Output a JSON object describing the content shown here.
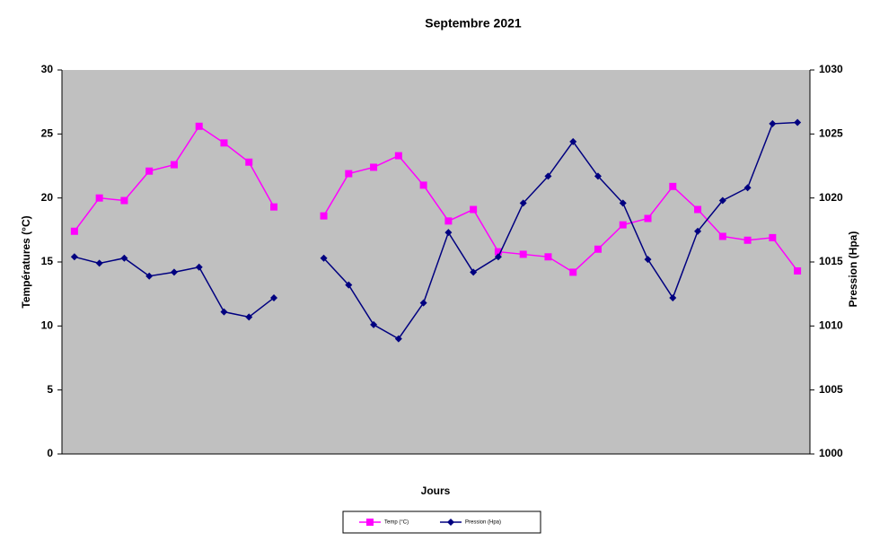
{
  "chart_data": {
    "type": "line",
    "title": "Septembre 2021",
    "xlabel": "Jours",
    "ylabel": "Températures (°C)",
    "y2label": "Pression (Hpa)",
    "categories": [
      null,
      null,
      null,
      null,
      null,
      null,
      null,
      null,
      null,
      null,
      null,
      null,
      null,
      null,
      null,
      null,
      null,
      null,
      null,
      null,
      null,
      null,
      null,
      null,
      null,
      null,
      null,
      null,
      null,
      null
    ],
    "series": [
      {
        "name": "Temp (°C)",
        "color": "#ff00ff",
        "marker": "square",
        "values": [
          17.4,
          20.0,
          19.8,
          22.1,
          22.6,
          25.6,
          24.3,
          22.8,
          19.3,
          null,
          18.6,
          21.9,
          22.4,
          23.3,
          21.0,
          18.2,
          19.1,
          15.8,
          15.6,
          15.4,
          14.2,
          16.0,
          17.9,
          18.4,
          20.9,
          19.1,
          17.0,
          16.7,
          16.9,
          14.3
        ]
      },
      {
        "name": "Pression (Hpa)",
        "color": "#000080",
        "marker": "diamond",
        "axis": "y2",
        "values": [
          1015.4,
          1014.9,
          1015.3,
          1013.9,
          1014.2,
          1014.6,
          1011.1,
          1010.7,
          1012.2,
          null,
          1015.3,
          1013.2,
          1010.1,
          1009.0,
          1011.8,
          1017.3,
          1014.2,
          1015.4,
          1019.6,
          1021.7,
          1024.4,
          1021.7,
          1019.6,
          1015.2,
          1012.2,
          1017.4,
          1019.8,
          1020.8,
          1025.8,
          1025.9
        ]
      }
    ],
    "ylim": [
      0,
      30
    ],
    "yticks": [
      0,
      5,
      10,
      15,
      20,
      25,
      30
    ],
    "y2lim": [
      1000,
      1030
    ],
    "y2ticks": [
      1000,
      1005,
      1010,
      1015,
      1020,
      1025,
      1030
    ],
    "grid": false,
    "legend": "bottom",
    "plot_background": "#c0c0c0"
  }
}
